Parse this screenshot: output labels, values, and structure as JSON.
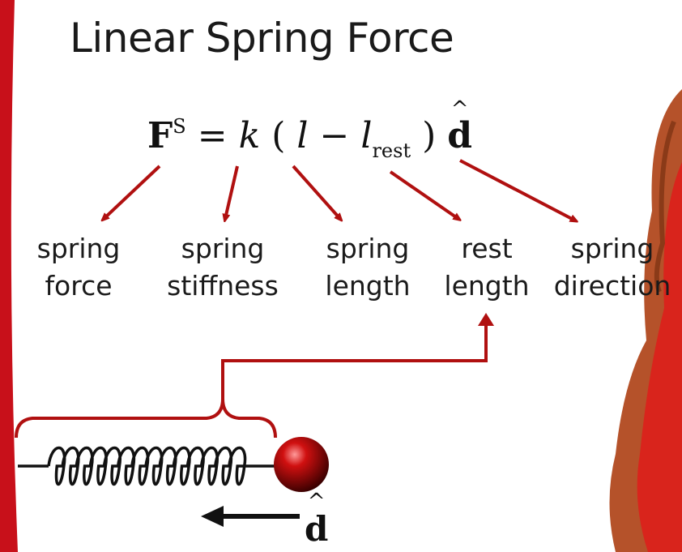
{
  "slide": {
    "title": "Linear Spring Force"
  },
  "equation": {
    "force_symbol": "F",
    "force_superscript": "S",
    "equals": "=",
    "stiffness_symbol": "k",
    "open_paren": "(",
    "length_symbol": "l",
    "minus": "−",
    "rest_length_symbol": "l",
    "rest_subscript": "rest",
    "close_paren": ")",
    "direction_symbol": "d",
    "hat": "^"
  },
  "labels": [
    {
      "line1": "spring",
      "line2": "force"
    },
    {
      "line1": "spring",
      "line2": "stiffness"
    },
    {
      "line1": "spring",
      "line2": "length"
    },
    {
      "line1": "rest",
      "line2": "length"
    },
    {
      "line1": "spring",
      "line2": "direction"
    }
  ],
  "bottom_vector": {
    "symbol": "d",
    "hat": "^"
  },
  "colors": {
    "arrow": "#b01010",
    "accent_bar": "#c8101a",
    "ball": "#b00000",
    "text": "#1a1a1a"
  }
}
